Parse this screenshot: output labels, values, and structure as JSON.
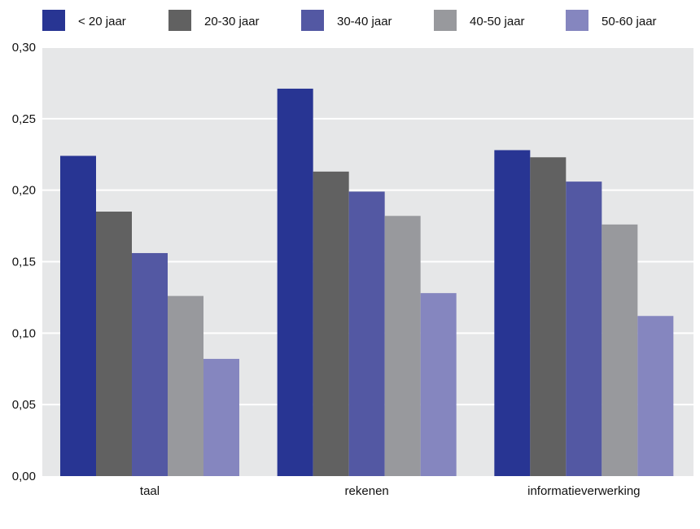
{
  "chart_data": {
    "type": "bar",
    "title": "",
    "xlabel": "",
    "ylabel": "",
    "categories": [
      "taal",
      "rekenen",
      "informatieverwerking"
    ],
    "series": [
      {
        "name": "< 20 jaar",
        "color": "#283593",
        "values": [
          0.224,
          0.271,
          0.228
        ]
      },
      {
        "name": "20-30 jaar",
        "color": "#616161",
        "values": [
          0.185,
          0.213,
          0.223
        ]
      },
      {
        "name": "30-40 jaar",
        "color": "#5358a3",
        "values": [
          0.156,
          0.199,
          0.206
        ]
      },
      {
        "name": "40-50 jaar",
        "color": "#98999d",
        "values": [
          0.126,
          0.182,
          0.176
        ]
      },
      {
        "name": "50-60 jaar",
        "color": "#8586bf",
        "values": [
          0.082,
          0.128,
          0.112
        ]
      }
    ],
    "ylim": [
      0,
      0.3
    ],
    "yticks": [
      "0,00",
      "0,05",
      "0,10",
      "0,15",
      "0,20",
      "0,25",
      "0,30"
    ],
    "grid": true,
    "plot_background": "#e6e7e8",
    "grid_color": "#ffffff",
    "legend_position": "top"
  }
}
